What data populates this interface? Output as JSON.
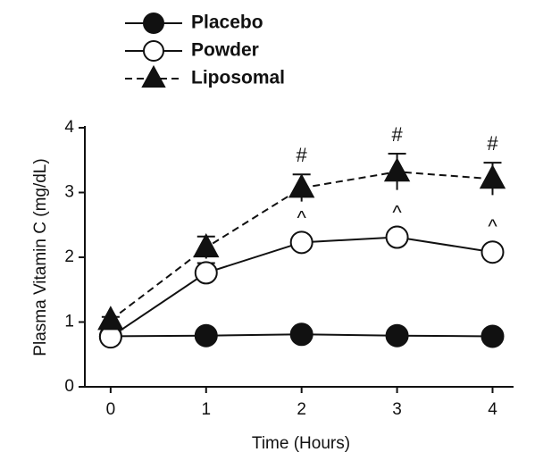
{
  "chart_data": {
    "type": "line",
    "xlabel": "Time (Hours)",
    "ylabel": "Plasma Vitamin C (mg/dL)",
    "xlim": [
      -0.27,
      4.22
    ],
    "xticks": [
      0,
      1,
      2,
      3,
      4
    ],
    "ylim": [
      0,
      4
    ],
    "yticks": [
      0,
      1,
      2,
      3,
      4
    ],
    "legend": "top-left",
    "series": [
      {
        "name": "Placebo",
        "color": "#111111",
        "marker": "circle",
        "filled": true,
        "dashed": false,
        "x": [
          0,
          1,
          2,
          3,
          4
        ],
        "values": [
          0.78,
          0.79,
          0.81,
          0.79,
          0.78
        ],
        "errors": [
          0.04,
          0.04,
          0.04,
          0.04,
          0.04
        ]
      },
      {
        "name": "Powder",
        "color": "#111111",
        "marker": "circle",
        "filled": false,
        "dashed": false,
        "x": [
          0,
          1,
          2,
          3,
          4
        ],
        "values": [
          0.77,
          1.76,
          2.23,
          2.31,
          2.08
        ],
        "errors": [
          0.05,
          0.15,
          0.08,
          0.08,
          0.1
        ]
      },
      {
        "name": "Liposomal",
        "color": "#111111",
        "marker": "triangle",
        "filled": true,
        "dashed": true,
        "x": [
          0,
          1,
          2,
          3,
          4
        ],
        "values": [
          1.03,
          2.15,
          3.07,
          3.32,
          3.21
        ],
        "errors": [
          0.05,
          0.17,
          0.21,
          0.28,
          0.25
        ]
      }
    ],
    "annotations": [
      {
        "text": "^",
        "series": 1,
        "x": 2
      },
      {
        "text": "^",
        "series": 1,
        "x": 3
      },
      {
        "text": "^",
        "series": 1,
        "x": 4
      },
      {
        "text": "#",
        "series": 2,
        "x": 2
      },
      {
        "text": "#",
        "series": 2,
        "x": 3
      },
      {
        "text": "#",
        "series": 2,
        "x": 4
      }
    ]
  }
}
